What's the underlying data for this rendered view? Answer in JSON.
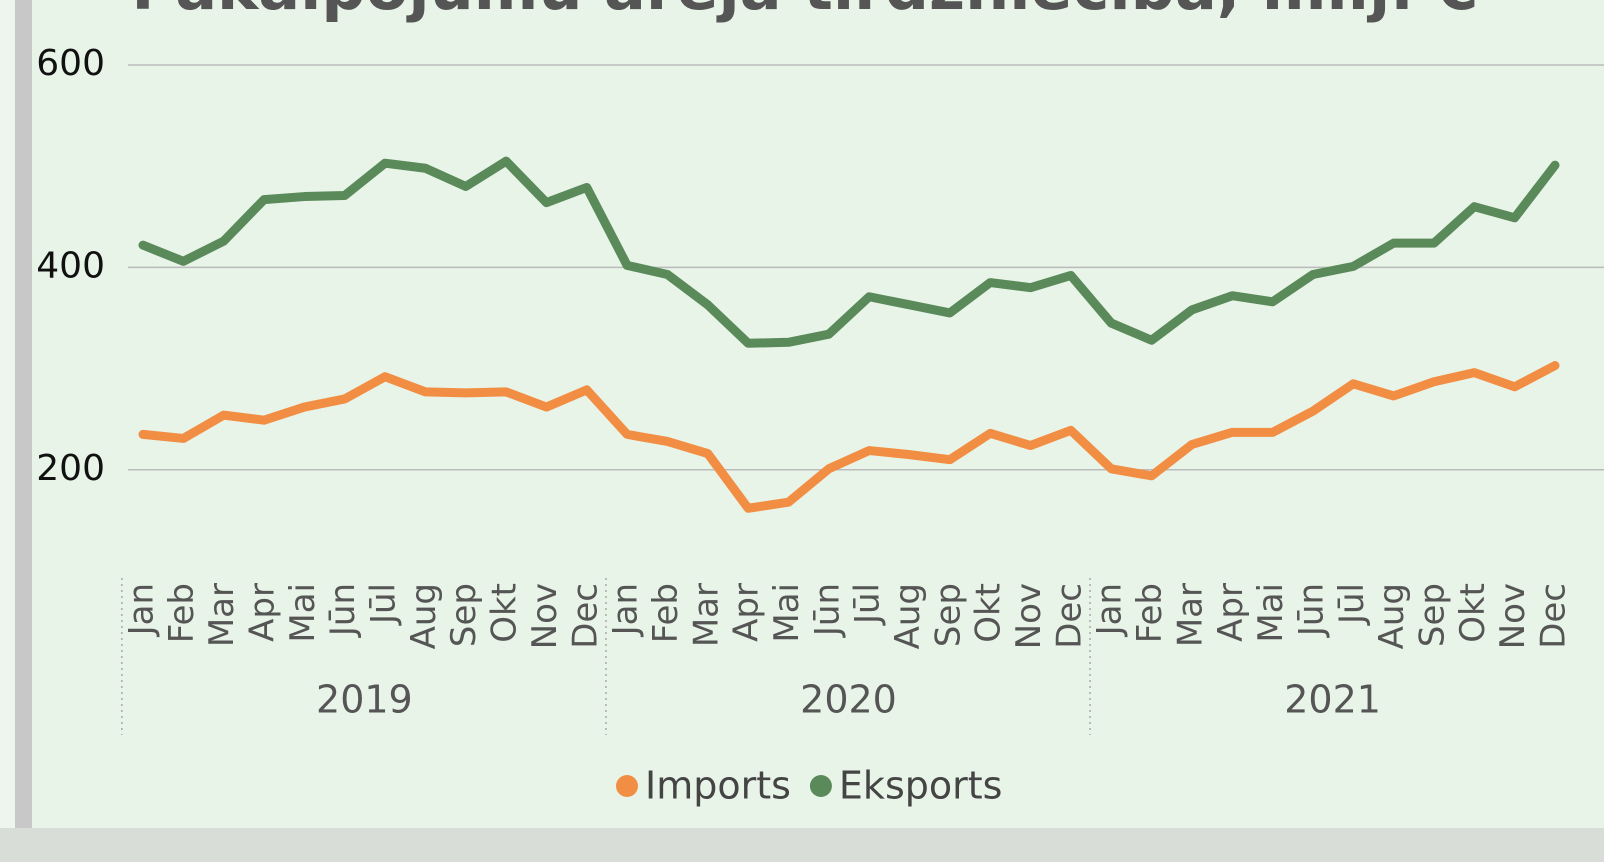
{
  "chart_data": {
    "type": "line",
    "title": "Pakalpojumu ārējā tirdzniecība, milj. €",
    "categories": [
      "Jan",
      "Feb",
      "Mar",
      "Apr",
      "Mai",
      "Jūn",
      "Jūl",
      "Aug",
      "Sep",
      "Okt",
      "Nov",
      "Dec",
      "Jan",
      "Feb",
      "Mar",
      "Apr",
      "Mai",
      "Jūn",
      "Jūl",
      "Aug",
      "Sep",
      "Okt",
      "Nov",
      "Dec",
      "Jan",
      "Feb",
      "Mar",
      "Apr",
      "Mai",
      "Jūn",
      "Jūl",
      "Aug",
      "Sep",
      "Okt",
      "Nov",
      "Dec"
    ],
    "years": [
      "2019",
      "2020",
      "2021"
    ],
    "series": [
      {
        "name": "Imports",
        "color": "#f28e44",
        "values": [
          235,
          231,
          254,
          249,
          262,
          270,
          292,
          277,
          276,
          277,
          262,
          279,
          235,
          228,
          216,
          162,
          168,
          201,
          219,
          215,
          210,
          236,
          224,
          239,
          201,
          194,
          225,
          237,
          237,
          258,
          285,
          273,
          287,
          296,
          282,
          303
        ]
      },
      {
        "name": "Eksports",
        "color": "#5a8a5a",
        "values": [
          422,
          406,
          426,
          467,
          470,
          471,
          503,
          498,
          480,
          505,
          464,
          479,
          402,
          393,
          363,
          325,
          326,
          334,
          371,
          363,
          355,
          385,
          380,
          392,
          345,
          328,
          358,
          372,
          366,
          393,
          401,
          424,
          424,
          460,
          449,
          501
        ]
      }
    ],
    "ylim": [
      100,
      600
    ],
    "yticks": [
      200,
      400,
      600
    ],
    "grid": true,
    "legend": "bottom"
  }
}
